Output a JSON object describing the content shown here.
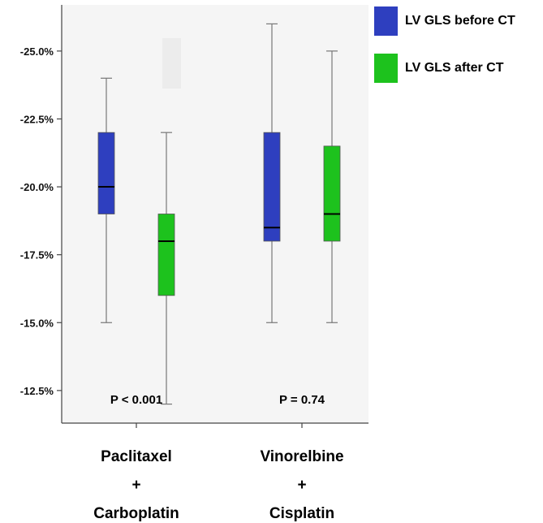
{
  "chart_data": {
    "type": "boxplot",
    "categories": [
      [
        "Paclitaxel",
        "+",
        "Carboplatin"
      ],
      [
        "Vinorelbine",
        "+",
        "Cisplatin"
      ]
    ],
    "y_ticks": [
      {
        "value": 25.0,
        "label": "-25.0%"
      },
      {
        "value": 22.5,
        "label": "-22.5%"
      },
      {
        "value": 20.0,
        "label": "-20.0%"
      },
      {
        "value": 17.5,
        "label": "-17.5%"
      },
      {
        "value": 15.0,
        "label": "-15.0%"
      },
      {
        "value": 12.5,
        "label": "-12.5%"
      }
    ],
    "ylim": [
      11.3,
      26.7
    ],
    "grid": false,
    "legend_position": "right",
    "series": [
      {
        "name": "LV GLS before CT",
        "color": "#2e3fbf",
        "boxes": [
          {
            "min": 15.0,
            "q1": 19.0,
            "median": 20.0,
            "q3": 22.0,
            "max": 24.0
          },
          {
            "min": 15.0,
            "q1": 18.0,
            "median": 18.5,
            "q3": 22.0,
            "max": 26.0
          }
        ]
      },
      {
        "name": "LV GLS after CT",
        "color": "#1dc21d",
        "boxes": [
          {
            "min": 12.0,
            "q1": 16.0,
            "median": 18.0,
            "q3": 19.0,
            "max": 22.0
          },
          {
            "min": 15.0,
            "q1": 18.0,
            "median": 19.0,
            "q3": 21.5,
            "max": 25.0
          }
        ]
      }
    ],
    "annotations": [
      {
        "group": 0,
        "text": "P < 0.001"
      },
      {
        "group": 1,
        "text": "P = 0.74"
      }
    ]
  }
}
